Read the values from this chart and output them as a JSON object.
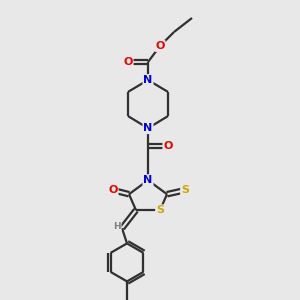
{
  "bg_color": "#e8e8e8",
  "atom_colors": {
    "C": "#303030",
    "N": "#0000ee",
    "O": "#ee0000",
    "S": "#ccaa00"
  },
  "bond_color": "#303030",
  "line_width": 1.6,
  "s": 22
}
